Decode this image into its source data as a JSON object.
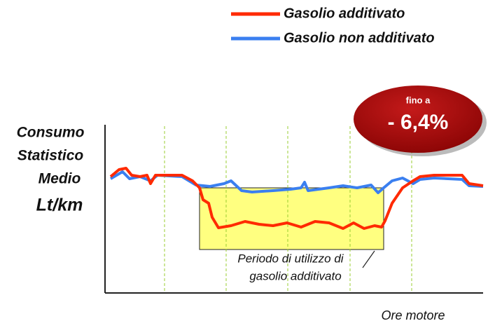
{
  "chart_data": {
    "type": "line",
    "y_label": [
      "Consumo",
      "Statistico",
      "Medio",
      "Lt/km"
    ],
    "x_label": "Ore motore",
    "annotations": [
      "fino a",
      "- 6,4%",
      "Periodo di utilizzo di",
      "gasolio additivato"
    ],
    "xlim": [
      0,
      540
    ],
    "ylim": [
      0,
      240
    ],
    "series": [
      {
        "name": "Gasolio additivato",
        "color": "#ff2a00",
        "x": [
          8,
          20,
          30,
          38,
          50,
          60,
          65,
          72,
          85,
          110,
          125,
          135,
          140,
          148,
          153,
          162,
          180,
          200,
          220,
          240,
          260,
          280,
          300,
          320,
          340,
          355,
          370,
          385,
          395,
          400,
          410,
          425,
          440,
          450,
          470,
          510,
          520,
          540
        ],
        "values": [
          166,
          176,
          178,
          168,
          166,
          168,
          156,
          168,
          168,
          168,
          160,
          150,
          133,
          128,
          108,
          93,
          96,
          102,
          98,
          96,
          100,
          94,
          102,
          100,
          92,
          100,
          92,
          96,
          94,
          103,
          128,
          150,
          160,
          166,
          168,
          168,
          156,
          153
        ]
      },
      {
        "name": "Gasolio non additivato",
        "color": "#3a7ff0",
        "x": [
          8,
          25,
          35,
          50,
          65,
          75,
          110,
          130,
          150,
          170,
          180,
          195,
          210,
          240,
          265,
          280,
          285,
          290,
          320,
          340,
          360,
          380,
          390,
          398,
          410,
          425,
          440,
          450,
          470,
          510,
          520,
          540
        ],
        "values": [
          163,
          173,
          163,
          166,
          160,
          168,
          166,
          154,
          152,
          156,
          160,
          146,
          144,
          146,
          148,
          150,
          158,
          146,
          150,
          153,
          150,
          154,
          143,
          150,
          160,
          164,
          156,
          162,
          164,
          162,
          153,
          152
        ]
      }
    ]
  }
}
